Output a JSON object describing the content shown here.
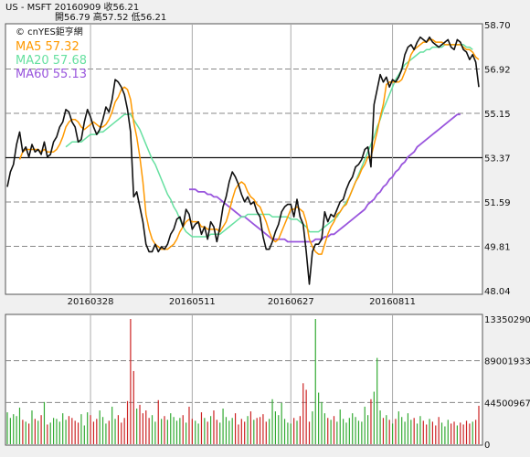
{
  "header": {
    "line1": "US - MSFT    20160909    收56.21",
    "line2": "開56.79    高57.52    低56.21"
  },
  "source_label": "© cnYES鉅亨網",
  "legend": {
    "ma5": "MA5 57.32",
    "ma20": "MA20 57.68",
    "ma60": "MA60 55.13"
  },
  "colors": {
    "price": "#111111",
    "ma5": "#ff9900",
    "ma20": "#66e0a0",
    "ma60": "#9955dd",
    "vol_up": "#33aa33",
    "vol_down": "#cc2222",
    "panel_bg": "#ffffff",
    "page_bg": "#f0f0f0"
  },
  "chart_data": [
    {
      "type": "line",
      "title": "US - MSFT",
      "ylim": [
        48.04,
        58.7
      ],
      "y_ticks": [
        "58.70",
        "56.92",
        "55.15",
        "53.37",
        "51.59",
        "49.81",
        "48.04"
      ],
      "x_ticks": [
        "20160328",
        "20160511",
        "20160627",
        "20160811"
      ],
      "series": [
        {
          "name": "MSFT",
          "values": [
            52.2,
            52.8,
            53.1,
            53.9,
            54.4,
            53.6,
            53.8,
            53.4,
            53.9,
            53.6,
            53.7,
            53.5,
            54.0,
            53.4,
            53.5,
            54.0,
            54.2,
            54.6,
            54.8,
            55.3,
            55.2,
            54.8,
            54.6,
            54.0,
            54.1,
            54.8,
            55.3,
            55.0,
            54.6,
            54.3,
            54.5,
            54.9,
            55.4,
            55.2,
            55.7,
            56.5,
            56.4,
            56.2,
            55.9,
            55.3,
            54.4,
            51.8,
            52.0,
            51.4,
            50.8,
            49.9,
            49.6,
            49.6,
            49.9,
            49.6,
            49.8,
            49.7,
            49.9,
            50.3,
            50.5,
            50.9,
            51.0,
            50.6,
            51.3,
            51.1,
            50.5,
            50.7,
            50.8,
            50.3,
            50.6,
            50.1,
            50.8,
            50.6,
            50.0,
            50.6,
            51.4,
            51.8,
            52.4,
            52.8,
            52.6,
            52.3,
            51.9,
            51.6,
            51.8,
            51.5,
            51.6,
            51.2,
            51.0,
            50.2,
            49.7,
            49.7,
            50.0,
            50.4,
            50.7,
            51.2,
            51.4,
            51.5,
            51.5,
            51.0,
            51.7,
            51.0,
            50.7,
            49.6,
            48.3,
            49.6,
            49.9,
            49.9,
            50.1,
            51.2,
            50.8,
            51.1,
            51.0,
            51.3,
            51.6,
            51.7,
            52.1,
            52.4,
            52.6,
            53.0,
            53.1,
            53.3,
            53.7,
            53.8,
            53.0,
            55.5,
            56.1,
            56.7,
            56.4,
            56.6,
            56.2,
            56.5,
            56.4,
            56.6,
            56.9,
            57.5,
            57.8,
            57.9,
            57.7,
            58.0,
            58.2,
            58.1,
            58.0,
            58.2,
            58.0,
            57.9,
            57.8,
            57.9,
            58.0,
            58.1,
            57.8,
            57.7,
            58.1,
            58.0,
            57.7,
            57.6,
            57.3,
            57.5,
            57.2,
            56.2
          ]
        },
        {
          "name": "MA5",
          "values": [
            null,
            null,
            null,
            null,
            53.3,
            53.6,
            53.7,
            53.7,
            53.7,
            53.7,
            53.7,
            53.6,
            53.7,
            53.6,
            53.6,
            53.6,
            53.7,
            53.9,
            54.2,
            54.6,
            54.8,
            54.9,
            54.9,
            54.8,
            54.6,
            54.5,
            54.6,
            54.7,
            54.8,
            54.7,
            54.6,
            54.6,
            54.7,
            54.9,
            55.2,
            55.6,
            55.8,
            56.1,
            56.2,
            56.1,
            55.7,
            54.8,
            54.2,
            53.4,
            52.4,
            51.1,
            50.5,
            50.1,
            49.9,
            49.8,
            49.7,
            49.7,
            49.7,
            49.8,
            49.9,
            50.1,
            50.4,
            50.6,
            50.8,
            50.9,
            50.8,
            50.8,
            50.8,
            50.6,
            50.6,
            50.5,
            50.5,
            50.5,
            50.5,
            50.4,
            50.6,
            50.8,
            51.2,
            51.7,
            52.1,
            52.3,
            52.4,
            52.3,
            52.0,
            51.8,
            51.7,
            51.5,
            51.4,
            51.1,
            50.8,
            50.4,
            50.1,
            50.0,
            50.1,
            50.4,
            50.7,
            51.0,
            51.3,
            51.3,
            51.4,
            51.3,
            51.2,
            50.8,
            50.1,
            49.8,
            49.6,
            49.5,
            49.5,
            49.9,
            50.3,
            50.6,
            50.8,
            51.1,
            51.2,
            51.4,
            51.5,
            51.8,
            52.1,
            52.4,
            52.6,
            52.9,
            53.1,
            53.4,
            53.4,
            53.9,
            54.4,
            55.0,
            55.5,
            56.3,
            56.4,
            56.4,
            56.4,
            56.4,
            56.5,
            56.8,
            57.1,
            57.5,
            57.7,
            57.8,
            57.9,
            58.0,
            58.0,
            58.1,
            58.1,
            58.0,
            58.0,
            58.0,
            57.9,
            57.9,
            57.9,
            57.9,
            57.9,
            57.9,
            57.8,
            57.7,
            57.7,
            57.6,
            57.4,
            57.3
          ]
        },
        {
          "name": "MA20",
          "values": [
            null,
            null,
            null,
            null,
            null,
            null,
            null,
            null,
            null,
            null,
            null,
            null,
            null,
            null,
            null,
            null,
            null,
            null,
            null,
            53.8,
            53.9,
            54.0,
            54.0,
            54.0,
            54.0,
            54.1,
            54.2,
            54.3,
            54.3,
            54.3,
            54.4,
            54.4,
            54.5,
            54.6,
            54.7,
            54.8,
            54.9,
            55.0,
            55.1,
            55.1,
            55.1,
            54.9,
            54.7,
            54.5,
            54.2,
            53.9,
            53.6,
            53.3,
            53.1,
            52.8,
            52.5,
            52.2,
            51.9,
            51.7,
            51.4,
            51.2,
            50.9,
            50.6,
            50.4,
            50.3,
            50.2,
            50.2,
            50.2,
            50.2,
            50.2,
            50.2,
            50.3,
            50.3,
            50.3,
            50.3,
            50.4,
            50.5,
            50.6,
            50.7,
            50.8,
            50.9,
            51.0,
            51.0,
            51.1,
            51.1,
            51.1,
            51.1,
            51.1,
            51.1,
            51.1,
            51.1,
            51.0,
            51.0,
            51.0,
            51.0,
            51.0,
            51.0,
            50.9,
            50.9,
            50.9,
            50.8,
            50.7,
            50.6,
            50.4,
            50.4,
            50.4,
            50.4,
            50.5,
            50.6,
            50.7,
            50.8,
            50.9,
            51.0,
            51.2,
            51.4,
            51.6,
            51.8,
            52.1,
            52.4,
            52.7,
            53.0,
            53.3,
            53.6,
            53.9,
            54.2,
            54.6,
            54.9,
            55.3,
            55.6,
            55.9,
            56.2,
            56.5,
            56.7,
            56.9,
            57.1,
            57.2,
            57.3,
            57.4,
            57.5,
            57.6,
            57.6,
            57.7,
            57.7,
            57.8,
            57.8,
            57.8,
            57.8,
            57.9,
            57.9,
            57.9,
            57.9,
            57.9,
            57.9,
            57.9,
            57.8,
            57.8,
            57.7
          ]
        },
        {
          "name": "MA60",
          "values": [
            null,
            null,
            null,
            null,
            null,
            null,
            null,
            null,
            null,
            null,
            null,
            null,
            null,
            null,
            null,
            null,
            null,
            null,
            null,
            null,
            null,
            null,
            null,
            null,
            null,
            null,
            null,
            null,
            null,
            null,
            null,
            null,
            null,
            null,
            null,
            null,
            null,
            null,
            null,
            null,
            null,
            null,
            null,
            null,
            null,
            null,
            null,
            null,
            null,
            null,
            null,
            null,
            null,
            null,
            null,
            null,
            null,
            null,
            null,
            52.1,
            52.1,
            52.1,
            52.0,
            52.0,
            52.0,
            51.9,
            51.9,
            51.8,
            51.8,
            51.7,
            51.6,
            51.5,
            51.4,
            51.3,
            51.2,
            51.1,
            51.0,
            51.0,
            50.9,
            50.8,
            50.7,
            50.6,
            50.5,
            50.4,
            50.3,
            50.2,
            50.1,
            50.1,
            50.1,
            50.1,
            50.1,
            50.0,
            50.0,
            50.0,
            50.0,
            50.0,
            50.0,
            50.0,
            50.0,
            50.0,
            50.1,
            50.1,
            50.1,
            50.2,
            50.2,
            50.3,
            50.3,
            50.4,
            50.5,
            50.6,
            50.7,
            50.8,
            50.9,
            51.0,
            51.1,
            51.2,
            51.3,
            51.5,
            51.6,
            51.7,
            51.9,
            52.0,
            52.2,
            52.3,
            52.5,
            52.6,
            52.8,
            52.9,
            53.1,
            53.2,
            53.4,
            53.5,
            53.6,
            53.8,
            53.9,
            54.0,
            54.1,
            54.2,
            54.3,
            54.4,
            54.5,
            54.6,
            54.7,
            54.8,
            54.9,
            55.0,
            55.1,
            55.1
          ]
        }
      ]
    },
    {
      "type": "bar",
      "ylim": [
        0,
        133502900
      ],
      "y_ticks": [
        "133502900",
        "89001933",
        "44500967",
        "0"
      ],
      "series": [
        {
          "name": "Volume",
          "values": [
            34000000,
            28000000,
            32000000,
            30000000,
            39000000,
            26000000,
            24000000,
            22000000,
            36000000,
            27000000,
            25000000,
            31000000,
            45000000,
            21000000,
            23000000,
            28000000,
            27000000,
            24000000,
            33000000,
            26000000,
            30000000,
            28000000,
            25000000,
            23000000,
            32000000,
            20000000,
            34000000,
            31000000,
            24000000,
            27000000,
            36000000,
            29000000,
            22000000,
            25000000,
            40000000,
            27000000,
            31000000,
            23000000,
            28000000,
            46000000,
            133502900,
            78000000,
            38000000,
            42000000,
            33000000,
            36000000,
            28000000,
            31000000,
            24000000,
            47000000,
            27000000,
            30000000,
            26000000,
            33000000,
            29000000,
            25000000,
            28000000,
            31000000,
            23000000,
            40000000,
            27000000,
            25000000,
            22000000,
            34000000,
            28000000,
            24000000,
            30000000,
            36000000,
            26000000,
            23000000,
            38000000,
            29000000,
            25000000,
            28000000,
            33000000,
            21000000,
            27000000,
            24000000,
            30000000,
            35000000,
            26000000,
            28000000,
            29000000,
            32000000,
            24000000,
            27000000,
            48000000,
            35000000,
            31000000,
            44000000,
            27000000,
            23000000,
            22000000,
            28000000,
            25000000,
            30000000,
            65000000,
            58000000,
            24000000,
            35000000,
            133502900,
            55000000,
            45000000,
            33000000,
            28000000,
            26000000,
            30000000,
            24000000,
            37000000,
            27000000,
            23000000,
            28000000,
            33000000,
            29000000,
            25000000,
            24000000,
            40000000,
            31000000,
            48000000,
            56000000,
            92000000,
            36000000,
            28000000,
            31000000,
            26000000,
            22000000,
            27000000,
            35000000,
            29000000,
            24000000,
            33000000,
            26000000,
            28000000,
            22000000,
            30000000,
            25000000,
            21000000,
            27000000,
            24000000,
            20000000,
            29000000,
            23000000,
            19000000,
            26000000,
            22000000,
            24000000,
            20000000,
            23000000,
            21000000,
            25000000,
            22000000,
            24000000,
            26000000,
            41000000
          ]
        }
      ]
    }
  ]
}
